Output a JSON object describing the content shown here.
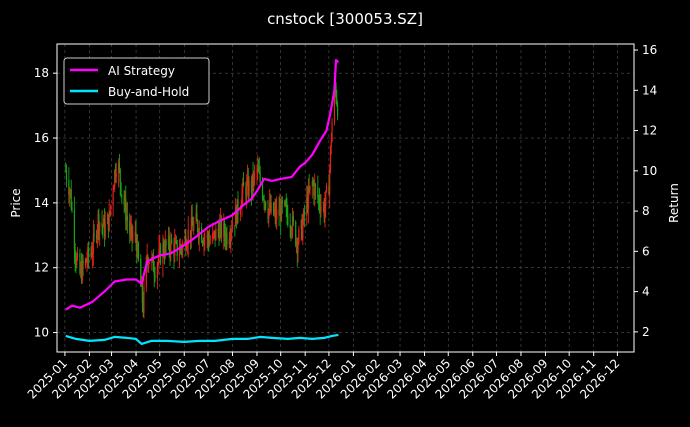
{
  "chart_data": {
    "type": "line",
    "title": "cnstock [300053.SZ]",
    "ylabel_left": "Price",
    "ylabel_right": "Return",
    "x_ticks": [
      "2025-01",
      "2025-02",
      "2025-03",
      "2025-04",
      "2025-05",
      "2025-06",
      "2025-07",
      "2025-08",
      "2025-09",
      "2025-10",
      "2025-11",
      "2025-12",
      "2026-01",
      "2026-02",
      "2026-03",
      "2026-04",
      "2026-05",
      "2026-06",
      "2026-07",
      "2026-08",
      "2026-09",
      "2026-10",
      "2026-11",
      "2026-12"
    ],
    "xlim": [
      "2024-12-22",
      "2026-12-22"
    ],
    "y_left_ticks": [
      10,
      12,
      14,
      16,
      18
    ],
    "ylim_left": [
      9.4,
      18.9
    ],
    "y_right_ticks": [
      2,
      4,
      6,
      8,
      10,
      12,
      14,
      16
    ],
    "ylim_right": [
      1.0,
      16.3
    ],
    "grid": true,
    "legend_position": "top-left",
    "colors": {
      "background": "#000000",
      "ai_strategy": "#ff00ff",
      "buy_and_hold": "#00e5ff",
      "candle_up": "#e8201a",
      "candle_down": "#17a317",
      "grid": "#555555"
    },
    "series": [
      {
        "name": "AI Strategy",
        "axis": "right",
        "x": [
          "2025-01-02",
          "2025-01-10",
          "2025-01-20",
          "2025-02-05",
          "2025-02-20",
          "2025-03-05",
          "2025-03-20",
          "2025-04-01",
          "2025-04-08",
          "2025-04-15",
          "2025-05-01",
          "2025-05-15",
          "2025-06-01",
          "2025-06-15",
          "2025-07-01",
          "2025-07-15",
          "2025-08-01",
          "2025-08-15",
          "2025-08-25",
          "2025-09-01",
          "2025-09-10",
          "2025-09-20",
          "2025-10-01",
          "2025-10-15",
          "2025-10-25",
          "2025-11-01",
          "2025-11-10",
          "2025-11-20",
          "2025-11-28",
          "2025-12-03",
          "2025-12-08",
          "2025-12-10",
          "2025-12-13"
        ],
        "values": [
          3.1,
          3.3,
          3.2,
          3.5,
          4.0,
          4.5,
          4.6,
          4.6,
          4.4,
          5.5,
          5.8,
          5.9,
          6.3,
          6.7,
          7.2,
          7.5,
          7.8,
          8.3,
          8.6,
          9.0,
          9.6,
          9.5,
          9.6,
          9.7,
          10.2,
          10.4,
          10.8,
          11.5,
          12.0,
          12.9,
          14.0,
          15.5,
          15.4
        ]
      },
      {
        "name": "Buy-and-Hold",
        "axis": "right",
        "x": [
          "2025-01-02",
          "2025-01-15",
          "2025-02-01",
          "2025-02-20",
          "2025-03-05",
          "2025-03-20",
          "2025-04-01",
          "2025-04-08",
          "2025-04-20",
          "2025-05-10",
          "2025-06-01",
          "2025-06-20",
          "2025-07-10",
          "2025-08-01",
          "2025-08-20",
          "2025-09-05",
          "2025-09-20",
          "2025-10-10",
          "2025-10-25",
          "2025-11-10",
          "2025-11-25",
          "2025-12-05",
          "2025-12-13"
        ],
        "values": [
          1.8,
          1.65,
          1.55,
          1.6,
          1.75,
          1.7,
          1.65,
          1.4,
          1.55,
          1.55,
          1.5,
          1.55,
          1.55,
          1.65,
          1.65,
          1.75,
          1.7,
          1.65,
          1.7,
          1.65,
          1.7,
          1.8,
          1.85
        ]
      }
    ],
    "price_path": {
      "axis": "left",
      "x": [
        "2025-01-02",
        "2025-01-08",
        "2025-01-15",
        "2025-01-20",
        "2025-01-28",
        "2025-02-05",
        "2025-02-12",
        "2025-02-20",
        "2025-02-26",
        "2025-03-03",
        "2025-03-08",
        "2025-03-15",
        "2025-03-25",
        "2025-04-01",
        "2025-04-07",
        "2025-04-10",
        "2025-04-15",
        "2025-04-25",
        "2025-05-05",
        "2025-05-15",
        "2025-05-25",
        "2025-06-05",
        "2025-06-15",
        "2025-06-25",
        "2025-07-05",
        "2025-07-15",
        "2025-07-25",
        "2025-08-05",
        "2025-08-15",
        "2025-08-25",
        "2025-09-01",
        "2025-09-08",
        "2025-09-15",
        "2025-09-25",
        "2025-10-05",
        "2025-10-15",
        "2025-10-22",
        "2025-10-28",
        "2025-11-03",
        "2025-11-10",
        "2025-11-18",
        "2025-11-25",
        "2025-12-01",
        "2025-12-05",
        "2025-12-09",
        "2025-12-12",
        "2025-12-14"
      ],
      "values": [
        15.0,
        14.3,
        12.3,
        11.8,
        12.2,
        12.6,
        13.5,
        13.2,
        13.5,
        14.6,
        15.4,
        14.2,
        13.0,
        12.9,
        11.4,
        10.8,
        12.4,
        12.0,
        12.6,
        12.7,
        12.5,
        13.0,
        13.4,
        13.0,
        12.8,
        13.2,
        13.0,
        13.6,
        14.4,
        14.5,
        15.0,
        14.4,
        13.8,
        13.6,
        13.8,
        13.4,
        12.8,
        13.2,
        14.0,
        14.6,
        14.1,
        13.8,
        14.6,
        16.5,
        17.6,
        17.0,
        16.8
      ]
    }
  }
}
